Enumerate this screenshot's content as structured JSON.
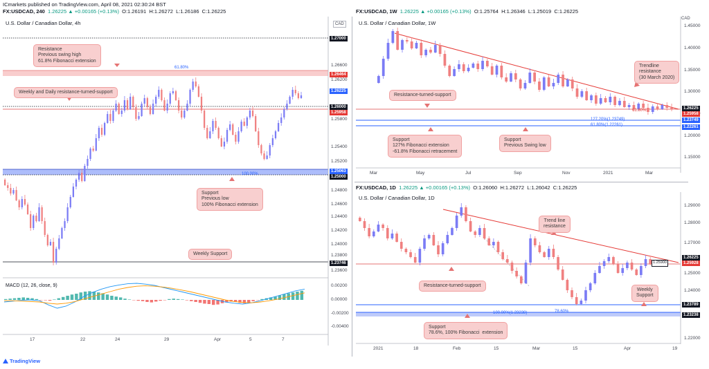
{
  "header": {
    "line1": "ICmarkets published on TradingView.com, April 08, 2021 02:30:24 BST",
    "left": {
      "sym": "FX:USDCAD, 240",
      "o": "O:1.26191",
      "h": "H:1.26272",
      "l": "L:1.26186",
      "c": "C:1.26225",
      "chg": "1.26225 ▲ +0.00165 (+0.13%)"
    },
    "rtop": {
      "sym": "FX:USDCAD, 1W",
      "o": "O:1.25764",
      "h": "H:1.26346",
      "l": "L:1.25019",
      "c": "C:1.26225",
      "chg": "1.26225 ▲ +0.00165 (+0.13%)"
    },
    "rbot": {
      "sym": "FX:USDCAD, 1D",
      "o": "O:1.26060",
      "h": "H:1.26272",
      "l": "L:1.26042",
      "c": "C:1.26225",
      "chg": "1.26225 ▲ +0.00165 (+0.13%)"
    }
  },
  "currency": "CAD",
  "footer": {
    "logo": "TradingView"
  },
  "colors": {
    "bull": "#7b7cf5",
    "bear": "#f08080",
    "macd": "#2196f3",
    "signal": "#ff9800"
  },
  "left_chart": {
    "title": "U.S. Dollar / Canadian Dollar, 4h",
    "yticks": [
      "1.26600",
      "1.26200",
      "1.25800",
      "1.25400",
      "1.25200",
      "1.24800",
      "1.24600",
      "1.24400",
      "1.24200",
      "1.24000",
      "1.23800",
      "1.23600"
    ],
    "price_tags": [
      "1.27000",
      "1.26464",
      "1.26225",
      "1.26000",
      "1.25958",
      "1.25063",
      "1.25000",
      "1.23746"
    ],
    "fib_labels": [
      "61.80%",
      "100.00%"
    ],
    "xticks": [
      "17",
      "22",
      "24",
      "29",
      "Apr",
      "5",
      "7"
    ],
    "annotations": [
      "Resistance\nPrevious swing high\n61.8% Fibonacci extension",
      "Weekly and Daily resistance-turned-support",
      "Support\nPrevious low\n100% Fibonacci extension",
      "Weekly Support"
    ],
    "macd": {
      "label": "MACD (12, 26, close, 9)",
      "yticks": [
        "0.00200",
        "0.00000",
        "-0.00200",
        "-0.00400"
      ],
      "hist": [
        0.2,
        0.3,
        0.4,
        0.5,
        0.6,
        0.5,
        0.4,
        0.2,
        0.0,
        -0.1,
        -0.2,
        0.1,
        0.4,
        0.7,
        1.0,
        1.3,
        1.5,
        1.8,
        2.0,
        2.1,
        2.0,
        1.8,
        1.6,
        1.3,
        1.0,
        0.8,
        0.6,
        0.3,
        0.1,
        0.0,
        -0.2,
        -0.3,
        -0.5,
        -0.6,
        -0.4,
        -0.2,
        0.0,
        0.2,
        0.3,
        0.2,
        0.1,
        -0.1,
        -0.3,
        -0.5,
        -0.7,
        -0.9,
        -1.0,
        -1.2,
        -1.1,
        -0.8,
        -0.6,
        -0.4,
        -0.5,
        -0.7,
        -0.8,
        -0.6,
        -0.3,
        0.0,
        0.2,
        0.4,
        0.6,
        0.8,
        1.1,
        1.4,
        1.6,
        1.8,
        2.0,
        2.2
      ],
      "macd_line": [
        -0.5,
        -0.3,
        -0.1,
        0.0,
        -0.2,
        -1.2,
        -2.0,
        -1.5,
        -0.5,
        0.8,
        1.8,
        2.6,
        3.2,
        3.6,
        3.9,
        4.0,
        3.8,
        3.5,
        3.0,
        2.5,
        2.0,
        1.5,
        1.0,
        0.5,
        0.0,
        -0.5,
        -0.8,
        -1.0,
        -0.7,
        -0.2,
        0.4,
        1.0,
        1.6,
        2.2,
        2.6
      ],
      "signal_line": [
        -0.2,
        -0.2,
        -0.3,
        -0.4,
        -0.5,
        -0.8,
        -1.0,
        -0.8,
        -0.4,
        0.2,
        0.8,
        1.4,
        2.0,
        2.6,
        3.0,
        3.3,
        3.4,
        3.3,
        3.1,
        2.8,
        2.4,
        2.0,
        1.5,
        1.0,
        0.5,
        0.0,
        -0.4,
        -0.6,
        -0.7,
        -0.5,
        -0.2,
        0.2,
        0.7,
        1.2,
        1.7
      ]
    }
  },
  "rtop_chart": {
    "title": "U.S. Dollar / Canadian Dollar, 1W",
    "yticks": [
      "1.45000",
      "1.40000",
      "1.35000",
      "1.30000",
      "1.25000",
      "1.20000",
      "1.15000"
    ],
    "price_tags": [
      "1.26225",
      "1.25958",
      "1.23749",
      "1.22261"
    ],
    "xticks": [
      "Mar",
      "May",
      "Jul",
      "Sep",
      "Nov",
      "2021",
      "Mar"
    ],
    "small_labels": [
      "61.80%",
      "127.20%(1.23749)",
      "61.80%(1.22261)"
    ],
    "annotations": [
      "Trendline\nresistance\n(30 March 2020)",
      "Resistance-turned-support",
      "Support\n127% Fibonacci extension\n-61.8% Fibonacci retracement",
      "Support\nPrevious Swing low"
    ]
  },
  "rbot_chart": {
    "title": "U.S. Dollar / Canadian Dollar, 1D",
    "yticks": [
      "1.29000",
      "1.28000",
      "1.27000",
      "1.25000",
      "1.24000",
      "1.22000"
    ],
    "price_tags": [
      "1.26225",
      "1.25928",
      "1.23789",
      "1.23238"
    ],
    "xticks": [
      "2021",
      "18",
      "Feb",
      "15",
      "Mar",
      "15",
      "Apr",
      "19"
    ],
    "small_labels": [
      "1.25900",
      "100.00%(1.23238)",
      "78.60%"
    ],
    "annotations": [
      "Trend line\nresistance",
      "Resistance-turned-support",
      "Weekly\nSupport",
      "Support\n78.6%, 100% Fibonacci  extension"
    ]
  }
}
